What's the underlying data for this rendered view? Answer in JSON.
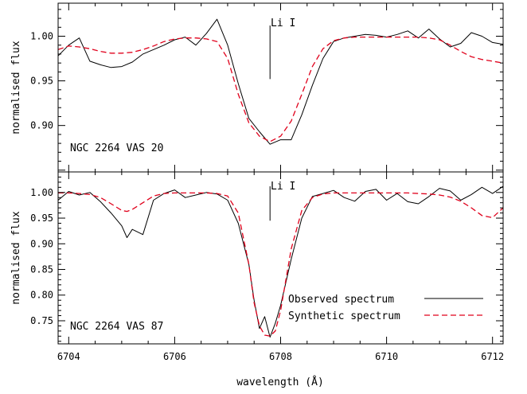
{
  "chart_data": [
    {
      "type": "line",
      "panel": "top",
      "ylabel": "normalised flux",
      "xlabel": "",
      "xlim": [
        6703.8,
        6712.2
      ],
      "ylim": [
        0.848,
        1.037
      ],
      "yticks": [
        0.9,
        0.95,
        1.0
      ],
      "ytick_labels": [
        "0.90",
        "0.95",
        "1.00"
      ],
      "star_label": "NGC 2264 VAS 20",
      "line_marker": {
        "label": "Li I",
        "x": 6707.8,
        "y_from": 0.952,
        "y_to": 1.012
      },
      "series": [
        {
          "name": "Observed spectrum",
          "style": "solid",
          "color": "#000000",
          "x": [
            6703.8,
            6704.0,
            6704.2,
            6704.4,
            6704.6,
            6704.8,
            6705.0,
            6705.2,
            6705.4,
            6705.6,
            6705.8,
            6706.0,
            6706.2,
            6706.4,
            6706.6,
            6706.8,
            6707.0,
            6707.2,
            6707.4,
            6707.6,
            6707.8,
            6708.0,
            6708.2,
            6708.4,
            6708.6,
            6708.8,
            6709.0,
            6709.2,
            6709.4,
            6709.6,
            6709.8,
            6710.0,
            6710.2,
            6710.4,
            6710.6,
            6710.8,
            6711.0,
            6711.2,
            6711.4,
            6711.6,
            6711.8,
            6712.0,
            6712.2
          ],
          "y": [
            0.978,
            0.99,
            0.998,
            0.972,
            0.968,
            0.965,
            0.966,
            0.971,
            0.98,
            0.985,
            0.99,
            0.996,
            0.999,
            0.99,
            1.003,
            1.019,
            0.99,
            0.947,
            0.908,
            0.893,
            0.879,
            0.884,
            0.884,
            0.912,
            0.945,
            0.975,
            0.994,
            0.998,
            1.0,
            1.002,
            1.001,
            0.999,
            1.002,
            1.006,
            0.998,
            1.008,
            0.997,
            0.988,
            0.992,
            1.004,
            1.0,
            0.993,
            0.991
          ]
        },
        {
          "name": "Synthetic spectrum",
          "style": "dashed",
          "color": "#e0001b",
          "x": [
            6703.8,
            6704.0,
            6704.2,
            6704.4,
            6704.6,
            6704.8,
            6705.0,
            6705.2,
            6705.4,
            6705.6,
            6705.8,
            6706.0,
            6706.2,
            6706.4,
            6706.6,
            6706.8,
            6707.0,
            6707.2,
            6707.4,
            6707.6,
            6707.8,
            6708.0,
            6708.2,
            6708.4,
            6708.6,
            6708.8,
            6709.0,
            6709.2,
            6709.4,
            6709.6,
            6709.8,
            6710.0,
            6710.2,
            6710.4,
            6710.6,
            6710.8,
            6711.0,
            6711.2,
            6711.4,
            6711.6,
            6711.8,
            6712.0,
            6712.2
          ],
          "y": [
            0.985,
            0.989,
            0.988,
            0.986,
            0.983,
            0.981,
            0.981,
            0.982,
            0.985,
            0.989,
            0.994,
            0.997,
            0.998,
            0.998,
            0.997,
            0.994,
            0.975,
            0.935,
            0.903,
            0.888,
            0.882,
            0.888,
            0.905,
            0.935,
            0.966,
            0.986,
            0.995,
            0.998,
            0.999,
            0.999,
            0.999,
            0.999,
            0.999,
            0.999,
            0.999,
            0.998,
            0.996,
            0.99,
            0.983,
            0.977,
            0.974,
            0.972,
            0.97
          ]
        }
      ]
    },
    {
      "type": "line",
      "panel": "bottom",
      "ylabel": "normalised flux",
      "xlabel": "wavelength (Å)",
      "xlim": [
        6703.8,
        6712.2
      ],
      "ylim": [
        0.705,
        1.04
      ],
      "xticks": [
        6704,
        6706,
        6708,
        6710,
        6712
      ],
      "xtick_labels": [
        "6704",
        "6706",
        "6708",
        "6710",
        "6712"
      ],
      "yticks": [
        0.75,
        0.8,
        0.85,
        0.9,
        0.95,
        1.0
      ],
      "ytick_labels": [
        "0.75",
        "0.80",
        "0.85",
        "0.90",
        "0.95",
        "1.00"
      ],
      "star_label": "NGC 2264 VAS 87",
      "line_marker": {
        "label": "Li I",
        "x": 6707.8,
        "y_from": 0.945,
        "y_to": 1.012
      },
      "legend": {
        "position": "bottom-right",
        "entries": [
          "Observed spectrum",
          "Synthetic spectrum"
        ]
      },
      "series": [
        {
          "name": "Observed spectrum",
          "style": "solid",
          "color": "#000000",
          "x": [
            6703.8,
            6704.0,
            6704.2,
            6704.4,
            6704.6,
            6704.8,
            6705.0,
            6705.1,
            6705.2,
            6705.4,
            6705.6,
            6705.8,
            6706.0,
            6706.2,
            6706.4,
            6706.6,
            6706.8,
            6707.0,
            6707.2,
            6707.4,
            6707.5,
            6707.6,
            6707.7,
            6707.8,
            6707.9,
            6708.0,
            6708.2,
            6708.4,
            6708.6,
            6708.8,
            6709.0,
            6709.2,
            6709.4,
            6709.6,
            6709.8,
            6710.0,
            6710.2,
            6710.4,
            6710.6,
            6710.8,
            6711.0,
            6711.2,
            6711.4,
            6711.6,
            6711.8,
            6712.0,
            6712.2
          ],
          "y": [
            0.985,
            1.002,
            0.995,
            1.0,
            0.982,
            0.96,
            0.935,
            0.912,
            0.928,
            0.918,
            0.985,
            0.998,
            1.005,
            0.99,
            0.995,
            1.0,
            0.997,
            0.985,
            0.94,
            0.86,
            0.79,
            0.735,
            0.758,
            0.718,
            0.745,
            0.78,
            0.87,
            0.95,
            0.992,
            0.998,
            1.004,
            0.99,
            0.983,
            1.002,
            1.006,
            0.985,
            0.998,
            0.982,
            0.978,
            0.992,
            1.008,
            1.003,
            0.985,
            0.996,
            1.01,
            0.998,
            1.012
          ]
        },
        {
          "name": "Synthetic spectrum",
          "style": "dashed",
          "color": "#e0001b",
          "x": [
            6703.8,
            6704.0,
            6704.2,
            6704.4,
            6704.6,
            6704.8,
            6705.0,
            6705.1,
            6705.2,
            6705.4,
            6705.6,
            6705.8,
            6706.0,
            6706.2,
            6706.4,
            6706.6,
            6706.8,
            6707.0,
            6707.2,
            6707.4,
            6707.5,
            6707.6,
            6707.7,
            6707.8,
            6707.9,
            6708.0,
            6708.2,
            6708.4,
            6708.6,
            6708.8,
            6709.0,
            6709.2,
            6709.4,
            6709.6,
            6709.8,
            6710.0,
            6710.2,
            6710.4,
            6710.6,
            6710.8,
            6711.0,
            6711.2,
            6711.4,
            6711.6,
            6711.8,
            6712.0,
            6712.2
          ],
          "y": [
            0.999,
            0.999,
            0.998,
            0.996,
            0.99,
            0.978,
            0.965,
            0.963,
            0.967,
            0.98,
            0.993,
            0.998,
            0.999,
            0.999,
            0.999,
            0.999,
            0.998,
            0.993,
            0.96,
            0.86,
            0.785,
            0.74,
            0.722,
            0.72,
            0.73,
            0.77,
            0.89,
            0.965,
            0.99,
            0.997,
            0.999,
            0.999,
            0.999,
            0.999,
            0.999,
            0.999,
            0.999,
            0.999,
            0.998,
            0.997,
            0.995,
            0.991,
            0.983,
            0.97,
            0.955,
            0.951,
            0.97
          ]
        }
      ]
    }
  ]
}
